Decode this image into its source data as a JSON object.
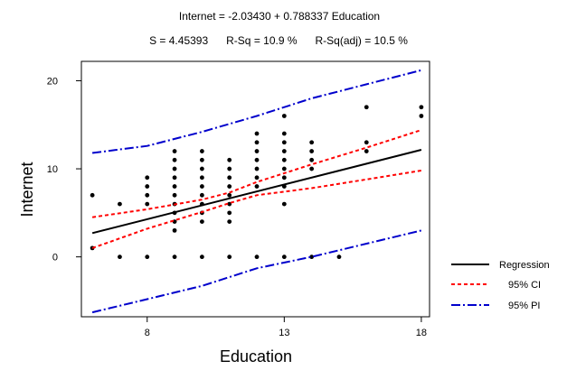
{
  "chart_data": {
    "type": "scatter",
    "title": "Internet = -2.03430 + 0.788337 Education",
    "subtitle": "S = 4.45393      R-Sq = 10.9 %      R-Sq(adj) = 10.5 %",
    "xlabel": "Education",
    "ylabel": "Internet",
    "xlim": [
      5.6,
      18.3
    ],
    "ylim": [
      -6.8,
      22.2
    ],
    "xticks": [
      8,
      13,
      18
    ],
    "yticks": [
      0,
      10,
      20
    ],
    "grid": false,
    "legend_position": "right",
    "legend": [
      "Regression",
      "95% CI",
      "95% PI"
    ],
    "colors": {
      "regression": "#000000",
      "ci": "#ff0000",
      "pi": "#0000cc",
      "points": "#000000"
    },
    "regression": {
      "intercept": -2.0343,
      "slope": 0.788337,
      "x_range": [
        6,
        18
      ]
    },
    "ci_upper": [
      [
        6,
        4.5
      ],
      [
        8,
        5.4
      ],
      [
        10,
        6.5
      ],
      [
        11,
        7.3
      ],
      [
        12,
        8.5
      ],
      [
        14,
        10.5
      ],
      [
        16,
        12.4
      ],
      [
        18,
        14.4
      ]
    ],
    "ci_lower": [
      [
        6,
        1.0
      ],
      [
        8,
        3.2
      ],
      [
        10,
        5.1
      ],
      [
        11,
        6.1
      ],
      [
        12,
        7.0
      ],
      [
        14,
        7.8
      ],
      [
        16,
        8.8
      ],
      [
        18,
        9.8
      ]
    ],
    "pi_upper": [
      [
        6,
        11.8
      ],
      [
        8,
        12.6
      ],
      [
        10,
        14.2
      ],
      [
        12,
        16.0
      ],
      [
        14,
        18.0
      ],
      [
        16,
        19.6
      ],
      [
        18,
        21.2
      ]
    ],
    "pi_lower": [
      [
        6,
        -6.3
      ],
      [
        8,
        -4.8
      ],
      [
        10,
        -3.3
      ],
      [
        12,
        -1.3
      ],
      [
        14,
        0.0
      ],
      [
        16,
        1.5
      ],
      [
        18,
        3.0
      ]
    ],
    "points": [
      [
        6,
        7
      ],
      [
        6,
        1
      ],
      [
        7,
        6
      ],
      [
        7,
        0
      ],
      [
        8,
        9
      ],
      [
        8,
        8
      ],
      [
        8,
        7
      ],
      [
        8,
        6
      ],
      [
        8,
        0
      ],
      [
        9,
        12
      ],
      [
        9,
        11
      ],
      [
        9,
        10
      ],
      [
        9,
        9
      ],
      [
        9,
        8
      ],
      [
        9,
        7
      ],
      [
        9,
        6
      ],
      [
        9,
        5
      ],
      [
        9,
        4
      ],
      [
        9,
        3
      ],
      [
        9,
        0
      ],
      [
        10,
        12
      ],
      [
        10,
        11
      ],
      [
        10,
        10
      ],
      [
        10,
        9
      ],
      [
        10,
        8
      ],
      [
        10,
        7
      ],
      [
        10,
        6
      ],
      [
        10,
        5
      ],
      [
        10,
        4
      ],
      [
        10,
        0
      ],
      [
        11,
        11
      ],
      [
        11,
        10
      ],
      [
        11,
        9
      ],
      [
        11,
        8
      ],
      [
        11,
        7
      ],
      [
        11,
        6
      ],
      [
        11,
        5
      ],
      [
        11,
        4
      ],
      [
        11,
        0
      ],
      [
        12,
        14
      ],
      [
        12,
        13
      ],
      [
        12,
        12
      ],
      [
        12,
        11
      ],
      [
        12,
        10
      ],
      [
        12,
        9
      ],
      [
        12,
        8
      ],
      [
        12,
        0
      ],
      [
        13,
        16
      ],
      [
        13,
        14
      ],
      [
        13,
        13
      ],
      [
        13,
        12
      ],
      [
        13,
        11
      ],
      [
        13,
        10
      ],
      [
        13,
        9
      ],
      [
        13,
        8
      ],
      [
        13,
        6
      ],
      [
        13,
        0
      ],
      [
        14,
        13
      ],
      [
        14,
        12
      ],
      [
        14,
        11
      ],
      [
        14,
        10
      ],
      [
        14,
        0
      ],
      [
        15,
        0
      ],
      [
        16,
        17
      ],
      [
        16,
        13
      ],
      [
        16,
        12
      ],
      [
        18,
        17
      ],
      [
        18,
        16
      ]
    ]
  }
}
